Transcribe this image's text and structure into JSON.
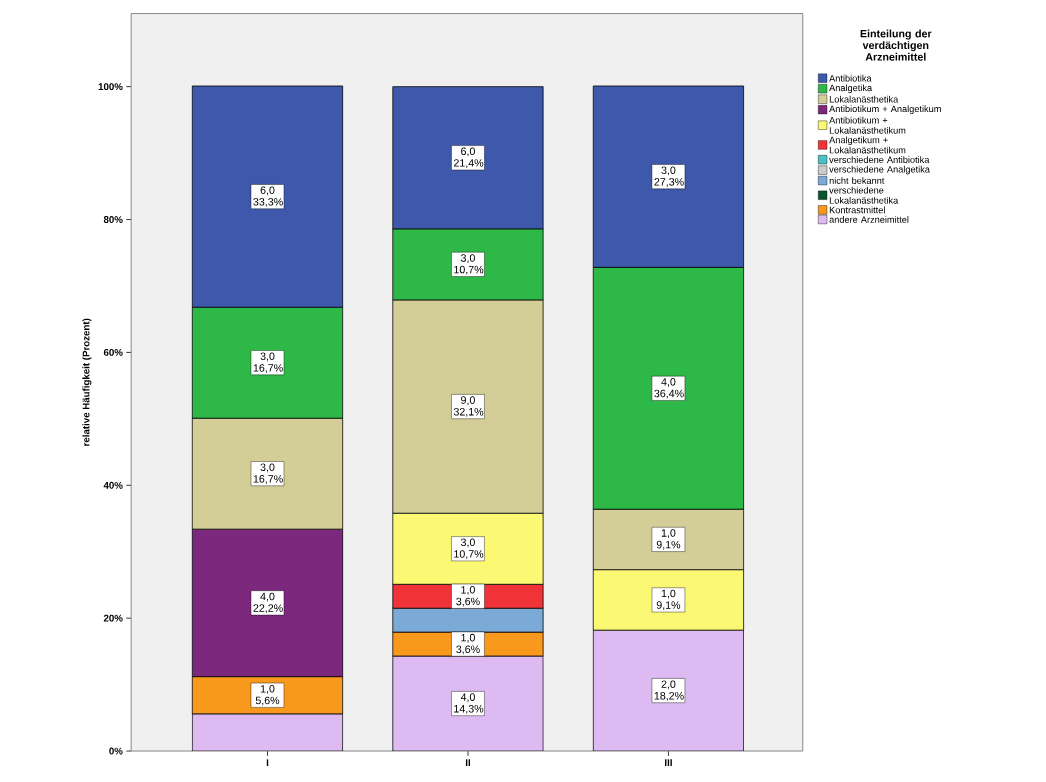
{
  "chart_data": {
    "type": "bar",
    "stacked": true,
    "ylabel": "relative Häufigkeit (Prozent)",
    "legend_title": "Einteilung der verdächtigen Arzneimittel",
    "legend": "right",
    "categories": [
      "I",
      "II",
      "III"
    ],
    "ylim": [
      0,
      111
    ],
    "yticks": [
      {
        "value": 0,
        "label": "0%"
      },
      {
        "value": 20,
        "label": "20%"
      },
      {
        "value": 40,
        "label": "40%"
      },
      {
        "value": 60,
        "label": "60%"
      },
      {
        "value": 80,
        "label": "80%"
      },
      {
        "value": 100,
        "label": "100%"
      }
    ],
    "series": [
      {
        "name": "andere Arzneimittel",
        "color": "#ddbaf1",
        "values": [
          5.6,
          14.3,
          18.2
        ],
        "value_labels": [
          null,
          "4,0 14,3%",
          "2,0 18,2%"
        ]
      },
      {
        "name": "Kontrastmittel",
        "color": "#f8981d",
        "values": [
          5.6,
          3.6,
          null
        ],
        "value_labels": [
          "1,0 5,6%",
          "1,0 3,6%",
          null
        ]
      },
      {
        "name": "verschiedene Lokalanästhetika",
        "color": "#0a562c",
        "values": [
          null,
          null,
          null
        ]
      },
      {
        "name": "nicht bekannt",
        "color": "#7aaad5",
        "values": [
          null,
          3.6,
          null
        ]
      },
      {
        "name": "verschiedene Analgetika",
        "color": "#cccccc",
        "values": [
          null,
          null,
          null
        ]
      },
      {
        "name": "verschiedene Antibiotika",
        "color": "#48c2c5",
        "values": [
          null,
          null,
          null
        ]
      },
      {
        "name": "Analgetikum + Lokalanästhetikum",
        "color": "#ef3338",
        "values": [
          null,
          3.6,
          null
        ],
        "value_labels": [
          null,
          "1,0 3,6%",
          null
        ]
      },
      {
        "name": "Antibiotikum + Lokalanästhetikum",
        "color": "#fbf873",
        "values": [
          null,
          10.7,
          9.1
        ],
        "value_labels": [
          null,
          "3,0 10,7%",
          "1,0 9,1%"
        ]
      },
      {
        "name": "Antibiotikum + Analgetikum",
        "color": "#7c287d",
        "values": [
          22.2,
          null,
          null
        ],
        "value_labels": [
          "4,0 22,2%",
          null,
          null
        ]
      },
      {
        "name": "Lokalanästhetika",
        "color": "#d3ce97",
        "values": [
          16.7,
          32.1,
          9.1
        ],
        "value_labels": [
          "3,0 16,7%",
          "9,0 32,1%",
          "1,0 9,1%"
        ]
      },
      {
        "name": "Analgetika",
        "color": "#2eb848",
        "values": [
          16.7,
          10.7,
          36.4
        ],
        "value_labels": [
          "3,0 16,7%",
          "3,0 10,7%",
          "4,0 36,4%"
        ]
      },
      {
        "name": "Antibiotika",
        "color": "#3e58ac",
        "values": [
          33.3,
          21.4,
          27.3
        ],
        "value_labels": [
          "6,0 33,3%",
          "6,0 21,4%",
          "3,0 27,3%"
        ]
      }
    ]
  }
}
